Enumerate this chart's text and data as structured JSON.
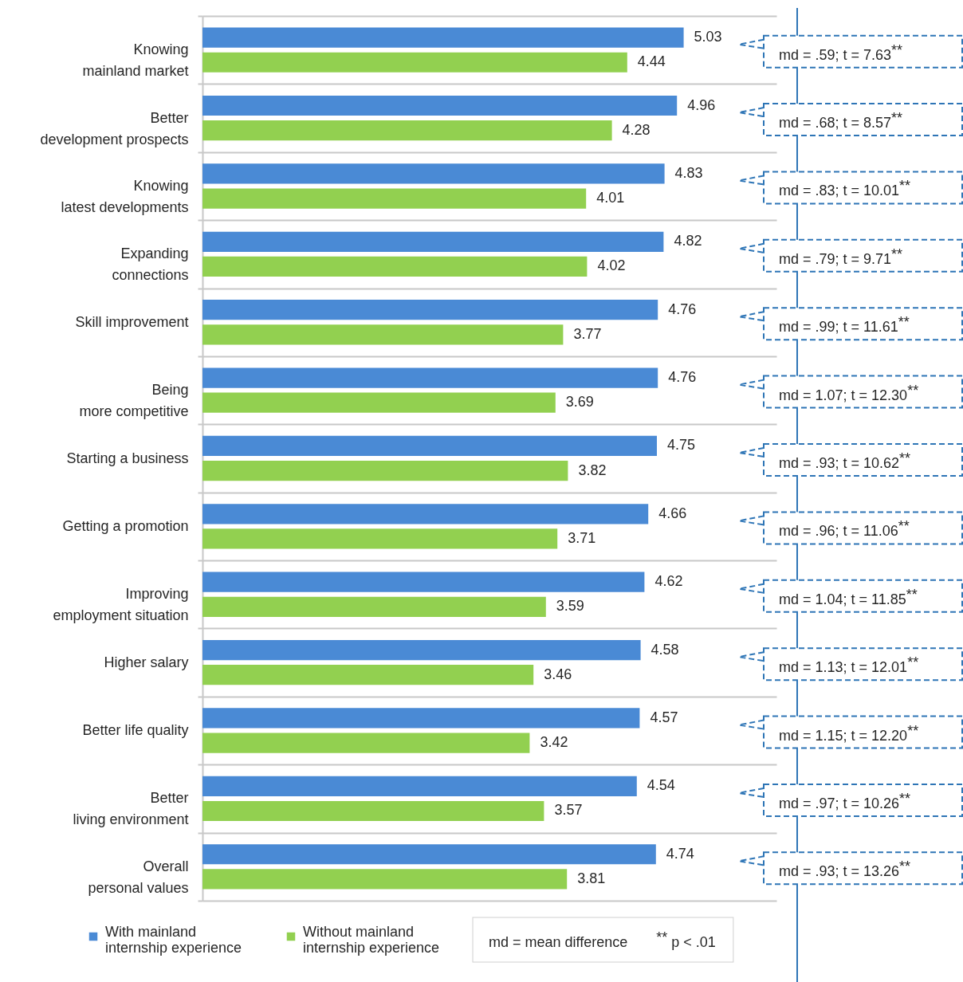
{
  "chart_data": {
    "type": "bar",
    "orientation": "horizontal",
    "categories": [
      "Knowing\nmainland market",
      "Better\ndevelopment prospects",
      "Knowing\nlatest developments",
      "Expanding\nconnections",
      "Skill improvement",
      "Being\nmore competitive",
      "Starting a business",
      "Getting a promotion",
      "Improving\nemployment situation",
      "Higher salary",
      "Better life quality",
      "Better\nliving environment",
      "Overall\npersonal values"
    ],
    "series": [
      {
        "name": "With mainland\ninternship experience",
        "color": "#4a8ad5",
        "values": [
          5.03,
          4.96,
          4.83,
          4.82,
          4.76,
          4.76,
          4.75,
          4.66,
          4.62,
          4.58,
          4.57,
          4.54,
          4.74
        ]
      },
      {
        "name": "Without mainland\ninternship experience",
        "color": "#92d050",
        "values": [
          4.44,
          4.28,
          4.01,
          4.02,
          3.77,
          3.69,
          3.82,
          3.71,
          3.59,
          3.46,
          3.42,
          3.57,
          3.81
        ]
      }
    ],
    "data_labels": true,
    "grid": "y",
    "legend": "bottom",
    "tick_labels": "y",
    "annotations": [
      "md = .59; t = 7.63$^{**}$",
      "md = .68; t = 8.57$^{**}$",
      "md = .83; t = 10.01$^{**}$",
      "md = .79; t = 9.71$^{**}$",
      "md = .99; t = 11.61$^{**}$",
      "md = 1.07; t = 12.30$^{**}$",
      "md = .93; t = 10.62$^{**}$",
      "md = .96; t = 11.06$^{**}$",
      "md = 1.04; t = 11.85$^{**}$",
      "md = 1.13; t = 12.01$^{**}$",
      "md = 1.15; t = 12.20$^{**}$",
      "md = .97; t = 10.26$^{**}$",
      "md = .93; t = 13.26$^{**}$",
      "md = mean difference",
      "$^{**}$ p < .01"
    ]
  }
}
